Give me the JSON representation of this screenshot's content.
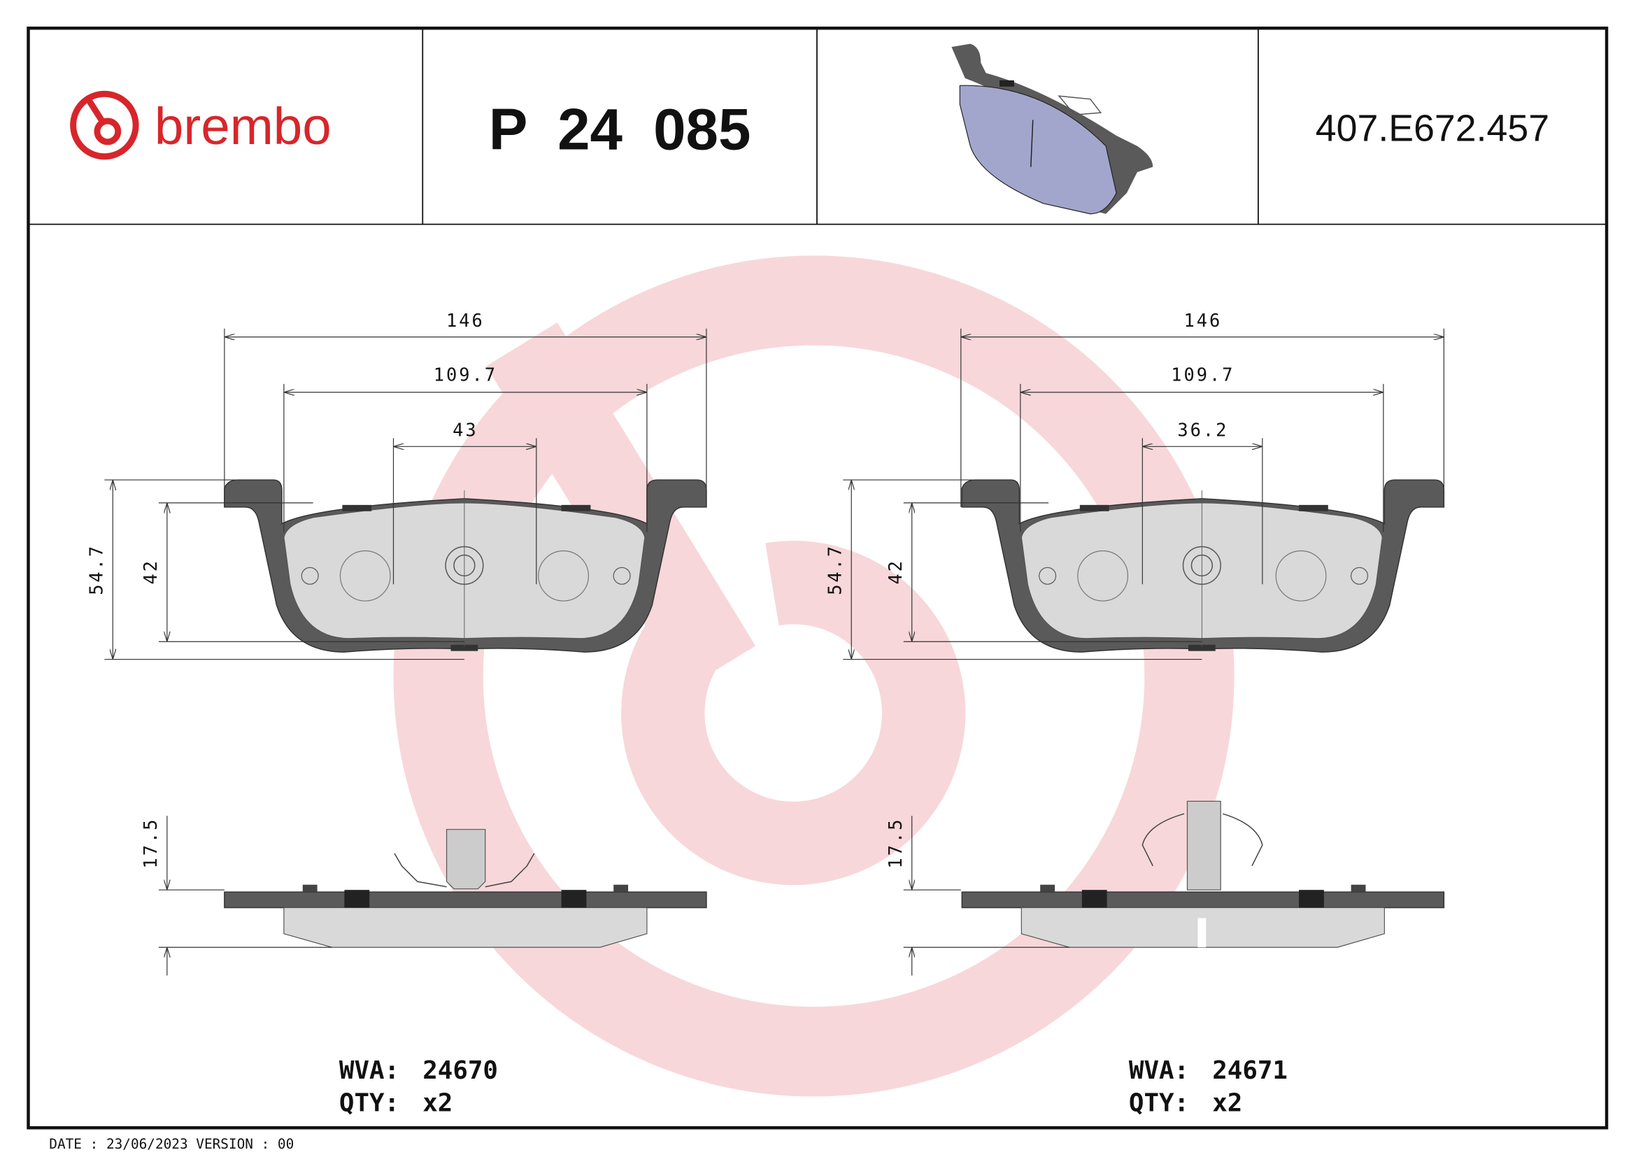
{
  "header": {
    "brand": "brembo",
    "part_number": "P 24 085",
    "reference": "407.E672.457"
  },
  "colors": {
    "brand_red": "#d7262b",
    "watermark": "#f7d3d6",
    "pad_friction": "#d9d9d9",
    "backing_plate": "#5a5a5a",
    "render_pad": "#a3a6cc"
  },
  "left_pad": {
    "width_total": "146",
    "width_pad": "109.7",
    "width_center": "43",
    "height_total": "54.7",
    "height_pad": "42",
    "thickness": "17.5",
    "wva_label": "WVA:",
    "wva": "24670",
    "qty_label": "QTY:",
    "qty": "x2"
  },
  "right_pad": {
    "width_total": "146",
    "width_pad": "109.7",
    "width_center": "36.2",
    "height_total": "54.7",
    "height_pad": "42",
    "thickness": "17.5",
    "wva_label": "WVA:",
    "wva": "24671",
    "qty_label": "QTY:",
    "qty": "x2"
  },
  "footer": {
    "date_version": "DATE : 23/06/2023 VERSION : 00"
  }
}
